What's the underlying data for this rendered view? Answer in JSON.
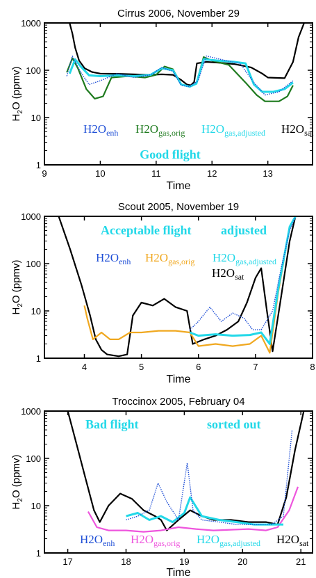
{
  "colors": {
    "enh": "#1f4fd6",
    "orig_green": "#1e7a1e",
    "orig_orange": "#f0a820",
    "orig_magenta": "#ee55dd",
    "adjusted": "#22d8e8",
    "sat": "#000000",
    "annotation": "#22d8e8"
  },
  "chart_data": [
    {
      "type": "line",
      "title": "Cirrus 2006, November 29",
      "xlabel": "Time",
      "ylabel": "H2O (ppmv)",
      "xlim": [
        9,
        13.8
      ],
      "ylim": [
        1,
        1000
      ],
      "yscale": "log",
      "x_ticks": [
        "9",
        "10",
        "11",
        "12",
        "13"
      ],
      "y_ticks": [
        "1",
        "10",
        "100",
        "1000"
      ],
      "annotations": [
        {
          "text": "Good flight"
        }
      ],
      "legend": [
        {
          "base": "H2O",
          "sub": "enh"
        },
        {
          "base": "H2O",
          "sub": "gas,orig"
        },
        {
          "base": "H2O",
          "sub": "gas,adjusted"
        },
        {
          "base": "H2O",
          "sub": "sat"
        }
      ],
      "series": [
        {
          "key": "sat",
          "x": [
            9.45,
            9.5,
            9.55,
            9.62,
            9.72,
            9.85,
            10.0,
            10.3,
            10.6,
            10.9,
            11.1,
            11.3,
            11.45,
            11.55,
            11.62,
            11.68,
            11.73,
            11.9,
            12.1,
            12.4,
            12.7,
            12.9,
            13.0,
            13.3,
            13.45,
            13.55,
            13.65
          ],
          "y": [
            1000,
            600,
            300,
            160,
            110,
            92,
            85,
            84,
            82,
            80,
            82,
            80,
            62,
            50,
            48,
            56,
            140,
            150,
            145,
            135,
            115,
            85,
            70,
            68,
            150,
            500,
            1000
          ]
        },
        {
          "key": "orig_green",
          "x": [
            9.4,
            9.5,
            9.6,
            9.75,
            9.9,
            10.05,
            10.2,
            10.5,
            10.8,
            11.0,
            11.15,
            11.3,
            11.45,
            11.6,
            11.72,
            11.85,
            12.0,
            12.3,
            12.6,
            12.8,
            12.95,
            13.2,
            13.35,
            13.45
          ],
          "y": [
            90,
            180,
            110,
            40,
            25,
            28,
            70,
            75,
            70,
            80,
            120,
            105,
            50,
            45,
            52,
            190,
            160,
            130,
            55,
            30,
            22,
            22,
            28,
            48
          ]
        },
        {
          "key": "adjusted",
          "x": [
            9.45,
            9.55,
            9.65,
            9.8,
            10.0,
            10.3,
            10.6,
            10.9,
            11.1,
            11.3,
            11.45,
            11.6,
            11.72,
            11.85,
            12.1,
            12.4,
            12.6,
            12.75,
            12.9,
            13.1,
            13.3,
            13.45
          ],
          "y": [
            85,
            170,
            120,
            78,
            75,
            78,
            75,
            80,
            110,
            100,
            50,
            45,
            52,
            170,
            160,
            150,
            140,
            50,
            35,
            35,
            40,
            55
          ]
        },
        {
          "key": "enh",
          "x": [
            9.4,
            9.5,
            9.65,
            9.8,
            10.0,
            10.3,
            10.6,
            10.9,
            11.1,
            11.3,
            11.45,
            11.6,
            11.75,
            11.9,
            12.2,
            12.5,
            12.75,
            12.95,
            13.2,
            13.45
          ],
          "y": [
            75,
            200,
            90,
            50,
            60,
            85,
            70,
            80,
            115,
            95,
            48,
            45,
            60,
            200,
            165,
            140,
            55,
            30,
            35,
            60
          ]
        }
      ]
    },
    {
      "type": "line",
      "title": "Scout 2005, November 19",
      "xlabel": "Time",
      "ylabel": "H2O (ppmv)",
      "xlim": [
        3.3,
        8
      ],
      "ylim": [
        1,
        1000
      ],
      "yscale": "log",
      "x_ticks": [
        "4",
        "5",
        "6",
        "7",
        "8"
      ],
      "y_ticks": [
        "1",
        "10",
        "100",
        "1000"
      ],
      "annotations": [
        {
          "text": "Acceptable flight"
        },
        {
          "text": "adjusted"
        }
      ],
      "legend": [
        {
          "base": "H2O",
          "sub": "enh"
        },
        {
          "base": "H2O",
          "sub": "gas,orig"
        },
        {
          "base": "H2O",
          "sub": "gas,adjusted"
        },
        {
          "base": "H2O",
          "sub": "sat"
        }
      ],
      "series": [
        {
          "key": "sat",
          "x": [
            3.55,
            3.75,
            3.95,
            4.1,
            4.2,
            4.3,
            4.4,
            4.6,
            4.75,
            4.85,
            5.0,
            5.2,
            5.4,
            5.6,
            5.8,
            5.9,
            6.1,
            6.3,
            6.5,
            6.7,
            6.85,
            7.0,
            7.1,
            7.2,
            7.3,
            7.45,
            7.6,
            7.7
          ],
          "y": [
            1000,
            200,
            35,
            8,
            2.5,
            1.5,
            1.2,
            1.1,
            1.2,
            8,
            15,
            13,
            18,
            12,
            10,
            2,
            2.5,
            3,
            4,
            6,
            15,
            50,
            80,
            10,
            1.4,
            20,
            300,
            1000
          ]
        },
        {
          "key": "orig_orange",
          "x": [
            4.0,
            4.05,
            4.15,
            4.3,
            4.45,
            4.6,
            4.8,
            5.0,
            5.3,
            5.6,
            5.85,
            6.0,
            6.3,
            6.6,
            6.9,
            7.1,
            7.25,
            7.4,
            7.6,
            7.7
          ],
          "y": [
            13,
            7,
            2.5,
            3.5,
            2.5,
            2.5,
            3.5,
            3.5,
            3.8,
            3.8,
            3.5,
            1.8,
            2,
            1.8,
            2,
            3,
            1.3,
            25,
            600,
            1000
          ]
        },
        {
          "key": "adjusted",
          "x": [
            5.85,
            6.0,
            6.3,
            6.6,
            6.9,
            7.1,
            7.25,
            7.4,
            7.6,
            7.7
          ],
          "y": [
            3.5,
            3,
            3.2,
            3,
            3.1,
            3.5,
            2,
            30,
            600,
            1000
          ]
        },
        {
          "key": "enh",
          "x": [
            5.85,
            6.0,
            6.2,
            6.4,
            6.6,
            6.8,
            6.95,
            7.1,
            7.3,
            7.45,
            7.6,
            7.7
          ],
          "y": [
            4,
            6,
            12,
            6,
            9,
            7,
            4,
            4,
            10,
            80,
            500,
            1000
          ]
        }
      ]
    },
    {
      "type": "line",
      "title": "Troccinox 2005, February 04",
      "xlabel": "Time",
      "ylabel": "H2O (ppmv)",
      "xlim": [
        16.6,
        21.2
      ],
      "ylim": [
        1,
        1000
      ],
      "yscale": "log",
      "x_ticks": [
        "17",
        "18",
        "19",
        "20",
        "21"
      ],
      "y_ticks": [
        "1",
        "10",
        "100",
        "1000"
      ],
      "annotations": [
        {
          "text": "Bad flight"
        },
        {
          "text": "sorted out"
        }
      ],
      "legend": [
        {
          "base": "H2O",
          "sub": "enh"
        },
        {
          "base": "H2O",
          "sub": "gas,orig"
        },
        {
          "base": "H2O",
          "sub": "gas,adjusted"
        },
        {
          "base": "H2O",
          "sub": "sat"
        }
      ],
      "series": [
        {
          "key": "sat",
          "x": [
            17.0,
            17.15,
            17.3,
            17.45,
            17.55,
            17.7,
            17.9,
            18.1,
            18.3,
            18.5,
            18.6,
            18.7,
            18.9,
            19.1,
            19.3,
            19.5,
            19.8,
            20.1,
            20.4,
            20.6,
            20.75,
            20.9,
            21.05
          ],
          "y": [
            1000,
            200,
            40,
            8,
            4.5,
            10,
            18,
            14,
            8,
            6,
            5,
            3,
            5,
            8,
            6,
            5,
            5,
            4.5,
            4.5,
            4,
            15,
            150,
            1000
          ]
        },
        {
          "key": "orig_magenta",
          "x": [
            17.35,
            17.5,
            17.7,
            18.0,
            18.3,
            18.6,
            18.9,
            19.2,
            19.5,
            19.8,
            20.1,
            20.4,
            20.6,
            20.8,
            20.95
          ],
          "y": [
            7.5,
            3.5,
            3,
            3,
            2.8,
            3,
            3.5,
            3.2,
            3,
            3.1,
            3.2,
            3,
            3.5,
            8,
            25
          ]
        },
        {
          "key": "adjusted",
          "x": [
            18.0,
            18.2,
            18.4,
            18.6,
            18.8,
            19.0,
            19.1,
            19.3,
            19.6,
            19.9,
            20.2,
            20.5,
            20.7
          ],
          "y": [
            6,
            7,
            5,
            6,
            4.5,
            7,
            15,
            6,
            5,
            4.5,
            4,
            4,
            4
          ]
        },
        {
          "key": "enh",
          "x": [
            18.0,
            18.2,
            18.4,
            18.55,
            18.7,
            18.9,
            19.05,
            19.15,
            19.3,
            19.6,
            19.9,
            20.2,
            20.5,
            20.7,
            20.85
          ],
          "y": [
            5,
            6,
            8,
            30,
            12,
            5,
            80,
            8,
            5,
            4.5,
            4,
            4,
            4,
            6,
            400
          ]
        }
      ]
    }
  ]
}
